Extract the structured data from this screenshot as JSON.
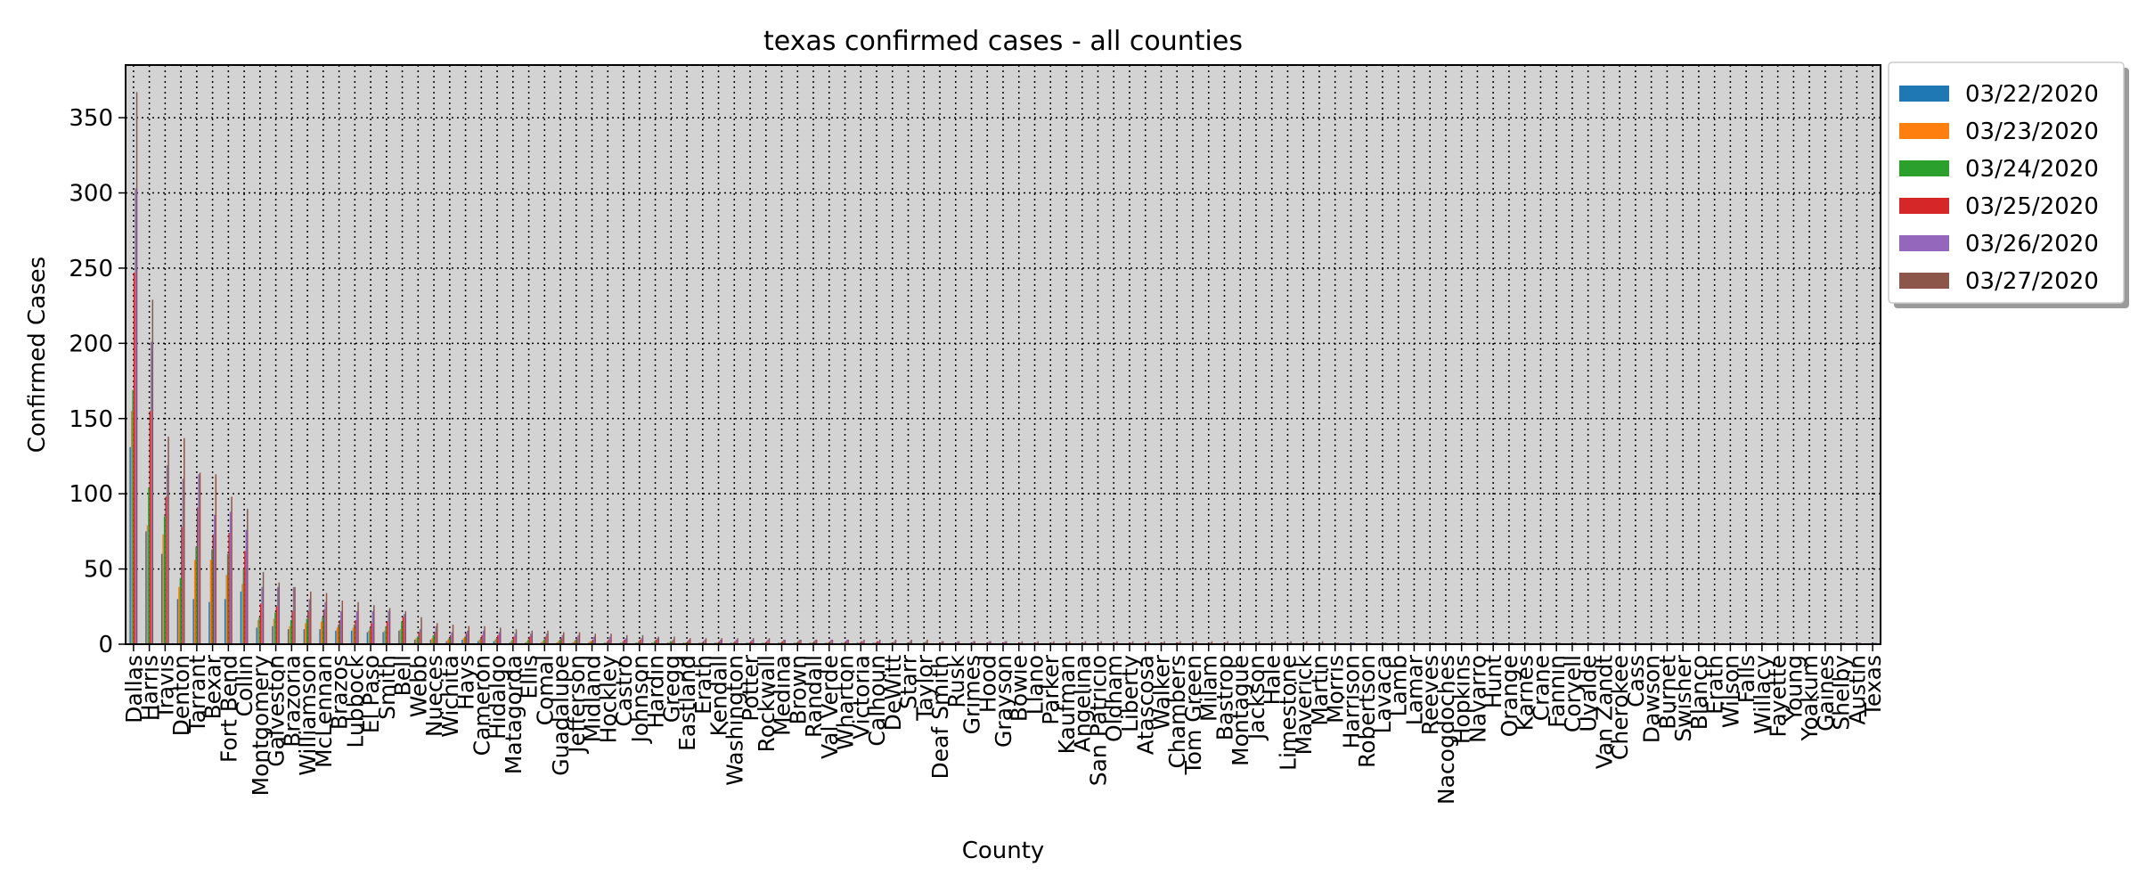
{
  "chart_data": {
    "type": "bar",
    "title": "texas confirmed cases - all counties",
    "xlabel": "County",
    "ylabel": "Confirmed Cases",
    "ylim": [
      0,
      385
    ],
    "yticks": [
      0,
      50,
      100,
      150,
      200,
      250,
      300,
      350
    ],
    "grid": true,
    "legend_position": "outside-right-top",
    "background": "#d3d3d3",
    "categories": [
      "Dallas",
      "Harris",
      "Travis",
      "Denton",
      "Tarrant",
      "Bexar",
      "Fort Bend",
      "Collin",
      "Montgomery",
      "Galveston",
      "Brazoria",
      "Williamson",
      "McLennan",
      "Brazos",
      "Lubbock",
      "El Paso",
      "Smith",
      "Bell",
      "Webb",
      "Nueces",
      "Wichita",
      "Hays",
      "Cameron",
      "Hidalgo",
      "Matagorda",
      "Ellis",
      "Comal",
      "Guadalupe",
      "Jefferson",
      "Midland",
      "Hockley",
      "Castro",
      "Johnson",
      "Hardin",
      "Gregg",
      "Eastland",
      "Erath",
      "Kendall",
      "Washington",
      "Potter",
      "Rockwall",
      "Medina",
      "Brown",
      "Randall",
      "Val Verde",
      "Wharton",
      "Victoria",
      "Calhoun",
      "DeWitt",
      "Starr",
      "Taylor",
      "Deaf Smith",
      "Rusk",
      "Grimes",
      "Hood",
      "Grayson",
      "Bowie",
      "Llano",
      "Parker",
      "Kaufman",
      "Angelina",
      "San Patricio",
      "Oldham",
      "Liberty",
      "Atascosa",
      "Walker",
      "Chambers",
      "Tom Green",
      "Milam",
      "Bastrop",
      "Montague",
      "Jackson",
      "Hale",
      "Limestone",
      "Maverick",
      "Martin",
      "Morris",
      "Harrison",
      "Robertson",
      "Lavaca",
      "Lamb",
      "Lamar",
      "Reeves",
      "Nacogdoches",
      "Hopkins",
      "Navarro",
      "Hunt",
      "Orange",
      "Karnes",
      "Crane",
      "Fannin",
      "Coryell",
      "Uvalde",
      "Van Zandt",
      "Cherokee",
      "Cass",
      "Dawson",
      "Burnet",
      "Swisher",
      "Blanco",
      "Erath",
      "Wilson",
      "Falls",
      "Willacy",
      "Fayette",
      "Young",
      "Yoakum",
      "Gaines",
      "Shelby",
      "Austin",
      "Texas"
    ],
    "series": [
      {
        "name": "03/22/2020",
        "color": "#1f77b4",
        "values": [
          131,
          75,
          60,
          30,
          30,
          28,
          30,
          35,
          11,
          12,
          10,
          10,
          10,
          9,
          9,
          8,
          8,
          9,
          3,
          3,
          2,
          3,
          2,
          2,
          1,
          1,
          1,
          1,
          1,
          1,
          1,
          1,
          1,
          1,
          1,
          1,
          1,
          1,
          1,
          1,
          1,
          1,
          1,
          1,
          1,
          1,
          1,
          1,
          0,
          0,
          0,
          0,
          0,
          0,
          0,
          0,
          0,
          0,
          0,
          0,
          0,
          0,
          0,
          0,
          0,
          0,
          0,
          0,
          0,
          0,
          0,
          0,
          0,
          0,
          0,
          0,
          0,
          0,
          0,
          0,
          0,
          0,
          0,
          0,
          0,
          0,
          0,
          0,
          0,
          0,
          0,
          0,
          0,
          0,
          0,
          0,
          0,
          0,
          0,
          0,
          0,
          0,
          0,
          0,
          0,
          0,
          0,
          0,
          0,
          0,
          0
        ]
      },
      {
        "name": "03/23/2020",
        "color": "#ff7f0e",
        "values": [
          155,
          79,
          73,
          38,
          56,
          56,
          46,
          40,
          16,
          17,
          12,
          14,
          15,
          11,
          11,
          9,
          9,
          10,
          4,
          4,
          3,
          4,
          3,
          3,
          2,
          2,
          2,
          2,
          2,
          2,
          1,
          1,
          1,
          1,
          1,
          1,
          1,
          1,
          1,
          1,
          1,
          1,
          1,
          1,
          1,
          1,
          1,
          1,
          1,
          0,
          0,
          0,
          0,
          0,
          0,
          0,
          0,
          0,
          0,
          0,
          0,
          0,
          0,
          0,
          0,
          0,
          0,
          0,
          0,
          0,
          0,
          0,
          0,
          0,
          0,
          0,
          0,
          0,
          0,
          0,
          0,
          0,
          0,
          0,
          0,
          0,
          0,
          0,
          0,
          0,
          0,
          0,
          0,
          0,
          0,
          0,
          0,
          0,
          0,
          0,
          0,
          0,
          0,
          0,
          0,
          0,
          0,
          0,
          0,
          0,
          0
        ]
      },
      {
        "name": "03/24/2020",
        "color": "#2ca02c",
        "values": [
          169,
          104,
          85,
          44,
          65,
          63,
          60,
          50,
          18,
          21,
          16,
          17,
          18,
          13,
          13,
          11,
          12,
          15,
          5,
          6,
          4,
          5,
          4,
          4,
          3,
          3,
          3,
          3,
          3,
          2,
          2,
          2,
          2,
          2,
          2,
          1,
          1,
          1,
          1,
          1,
          1,
          1,
          1,
          1,
          1,
          1,
          1,
          1,
          1,
          1,
          1,
          0,
          0,
          0,
          0,
          0,
          0,
          0,
          0,
          0,
          0,
          0,
          0,
          0,
          0,
          0,
          0,
          0,
          0,
          0,
          0,
          0,
          0,
          0,
          0,
          0,
          0,
          0,
          0,
          0,
          0,
          0,
          0,
          0,
          0,
          0,
          0,
          0,
          0,
          0,
          0,
          0,
          0,
          0,
          0,
          0,
          0,
          0,
          0,
          0,
          0,
          0,
          0,
          0,
          0,
          0,
          0,
          0,
          0,
          0,
          0
        ]
      },
      {
        "name": "03/25/2020",
        "color": "#d62728",
        "values": [
          247,
          155,
          98,
          78,
          91,
          73,
          74,
          62,
          27,
          25,
          22,
          22,
          23,
          16,
          16,
          14,
          15,
          18,
          8,
          8,
          6,
          7,
          6,
          6,
          5,
          5,
          5,
          4,
          4,
          3,
          3,
          3,
          3,
          3,
          2,
          2,
          2,
          2,
          2,
          2,
          2,
          2,
          2,
          2,
          2,
          2,
          2,
          2,
          1,
          1,
          1,
          1,
          1,
          1,
          1,
          1,
          1,
          1,
          1,
          1,
          1,
          1,
          1,
          1,
          1,
          1,
          1,
          1,
          1,
          1,
          0,
          0,
          0,
          0,
          0,
          0,
          0,
          0,
          0,
          0,
          0,
          0,
          0,
          0,
          0,
          0,
          0,
          0,
          0,
          0,
          0,
          0,
          0,
          0,
          0,
          0,
          0,
          0,
          0,
          0,
          0,
          0,
          0,
          0,
          0,
          0,
          0,
          0,
          0,
          0,
          0
        ]
      },
      {
        "name": "03/26/2020",
        "color": "#9467bd",
        "values": [
          303,
          201,
          119,
          110,
          113,
          86,
          88,
          76,
          38,
          38,
          38,
          30,
          28,
          22,
          22,
          22,
          22,
          20,
          10,
          12,
          8,
          9,
          9,
          8,
          7,
          7,
          7,
          6,
          6,
          5,
          5,
          4,
          4,
          4,
          3,
          3,
          3,
          3,
          3,
          3,
          3,
          3,
          3,
          3,
          3,
          3,
          2,
          2,
          2,
          2,
          2,
          2,
          2,
          2,
          2,
          2,
          1,
          1,
          1,
          1,
          1,
          1,
          1,
          1,
          1,
          1,
          1,
          1,
          1,
          1,
          1,
          1,
          1,
          1,
          1,
          1,
          1,
          1,
          1,
          1,
          1,
          1,
          1,
          1,
          1,
          1,
          1,
          1,
          1,
          1,
          1,
          1,
          1,
          1,
          1,
          1,
          1,
          1,
          1,
          1,
          1,
          1,
          1,
          1,
          1,
          1,
          1,
          1,
          1,
          1,
          1
        ]
      },
      {
        "name": "03/27/2020",
        "color": "#8c564b",
        "values": [
          367,
          229,
          138,
          137,
          114,
          113,
          98,
          90,
          48,
          41,
          38,
          35,
          34,
          29,
          28,
          26,
          24,
          22,
          18,
          14,
          13,
          12,
          12,
          11,
          10,
          9,
          9,
          8,
          8,
          7,
          7,
          6,
          6,
          5,
          5,
          4,
          4,
          4,
          4,
          4,
          4,
          3,
          3,
          3,
          3,
          3,
          3,
          3,
          3,
          3,
          3,
          2,
          2,
          2,
          2,
          2,
          2,
          2,
          2,
          2,
          2,
          2,
          2,
          2,
          2,
          2,
          2,
          2,
          2,
          2,
          2,
          2,
          2,
          2,
          2,
          2,
          1,
          1,
          1,
          1,
          1,
          1,
          1,
          1,
          1,
          1,
          1,
          1,
          1,
          1,
          1,
          1,
          1,
          1,
          1,
          1,
          1,
          1,
          1,
          1,
          1,
          1,
          1,
          1,
          1,
          1,
          1,
          1,
          1,
          1,
          1
        ]
      }
    ]
  }
}
